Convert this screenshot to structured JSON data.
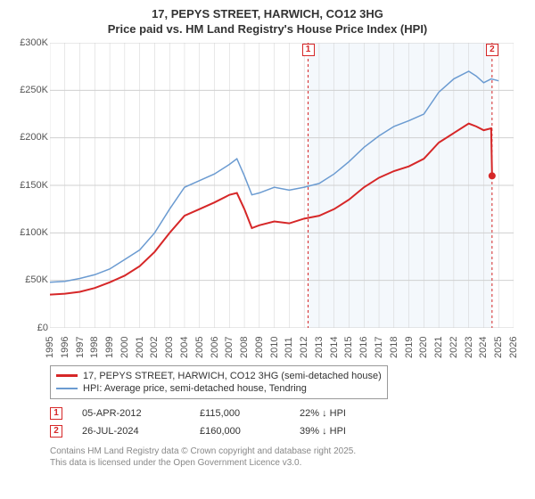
{
  "title_line1": "17, PEPYS STREET, HARWICH, CO12 3HG",
  "title_line2": "Price paid vs. HM Land Registry's House Price Index (HPI)",
  "chart": {
    "type": "line",
    "ylim": [
      0,
      300000
    ],
    "ytick_step": 50000,
    "yticks": [
      "£0",
      "£50K",
      "£100K",
      "£150K",
      "£200K",
      "£250K",
      "£300K"
    ],
    "xlim": [
      1995,
      2026
    ],
    "xticks": [
      "1995",
      "1996",
      "1997",
      "1998",
      "1999",
      "2000",
      "2001",
      "2002",
      "2003",
      "2004",
      "2005",
      "2006",
      "2007",
      "2008",
      "2009",
      "2010",
      "2011",
      "2012",
      "2013",
      "2014",
      "2015",
      "2016",
      "2017",
      "2018",
      "2019",
      "2020",
      "2021",
      "2022",
      "2023",
      "2024",
      "2025",
      "2026"
    ],
    "background_color": "#ffffff",
    "grid_color": "#d0d0d0",
    "series": [
      {
        "name": "property",
        "label": "17, PEPYS STREET, HARWICH, CO12 3HG (semi-detached house)",
        "color": "#d62728",
        "width": 2,
        "data": [
          [
            1995,
            35000
          ],
          [
            1996,
            36000
          ],
          [
            1997,
            38000
          ],
          [
            1998,
            42000
          ],
          [
            1999,
            48000
          ],
          [
            2000,
            55000
          ],
          [
            2001,
            65000
          ],
          [
            2002,
            80000
          ],
          [
            2003,
            100000
          ],
          [
            2004,
            118000
          ],
          [
            2005,
            125000
          ],
          [
            2006,
            132000
          ],
          [
            2007,
            140000
          ],
          [
            2007.5,
            142000
          ],
          [
            2008,
            125000
          ],
          [
            2008.5,
            105000
          ],
          [
            2009,
            108000
          ],
          [
            2010,
            112000
          ],
          [
            2011,
            110000
          ],
          [
            2012,
            115000
          ],
          [
            2013,
            118000
          ],
          [
            2014,
            125000
          ],
          [
            2015,
            135000
          ],
          [
            2016,
            148000
          ],
          [
            2017,
            158000
          ],
          [
            2018,
            165000
          ],
          [
            2019,
            170000
          ],
          [
            2020,
            178000
          ],
          [
            2021,
            195000
          ],
          [
            2022,
            205000
          ],
          [
            2023,
            215000
          ],
          [
            2023.5,
            212000
          ],
          [
            2024,
            208000
          ],
          [
            2024.5,
            210000
          ],
          [
            2024.56,
            160000
          ],
          [
            2024.6,
            162000
          ]
        ]
      },
      {
        "name": "hpi",
        "label": "HPI: Average price, semi-detached house, Tendring",
        "color": "#6b9bd1",
        "width": 1.5,
        "data": [
          [
            1995,
            48000
          ],
          [
            1996,
            49000
          ],
          [
            1997,
            52000
          ],
          [
            1998,
            56000
          ],
          [
            1999,
            62000
          ],
          [
            2000,
            72000
          ],
          [
            2001,
            82000
          ],
          [
            2002,
            100000
          ],
          [
            2003,
            125000
          ],
          [
            2004,
            148000
          ],
          [
            2005,
            155000
          ],
          [
            2006,
            162000
          ],
          [
            2007,
            172000
          ],
          [
            2007.5,
            178000
          ],
          [
            2008,
            160000
          ],
          [
            2008.5,
            140000
          ],
          [
            2009,
            142000
          ],
          [
            2010,
            148000
          ],
          [
            2011,
            145000
          ],
          [
            2012,
            148000
          ],
          [
            2013,
            152000
          ],
          [
            2014,
            162000
          ],
          [
            2015,
            175000
          ],
          [
            2016,
            190000
          ],
          [
            2017,
            202000
          ],
          [
            2018,
            212000
          ],
          [
            2019,
            218000
          ],
          [
            2020,
            225000
          ],
          [
            2021,
            248000
          ],
          [
            2022,
            262000
          ],
          [
            2023,
            270000
          ],
          [
            2023.5,
            265000
          ],
          [
            2024,
            258000
          ],
          [
            2024.5,
            262000
          ],
          [
            2025,
            260000
          ]
        ]
      }
    ],
    "markers": [
      {
        "n": "1",
        "x": 2012.26,
        "y_top": 300000,
        "color": "#d62728"
      },
      {
        "n": "2",
        "x": 2024.56,
        "y_top": 300000,
        "color": "#d62728"
      }
    ]
  },
  "legend": {
    "items": [
      {
        "color": "#d62728",
        "label": "17, PEPYS STREET, HARWICH, CO12 3HG (semi-detached house)"
      },
      {
        "color": "#6b9bd1",
        "label": "HPI: Average price, semi-detached house, Tendring"
      }
    ]
  },
  "data_points": [
    {
      "n": "1",
      "color": "#d62728",
      "date": "05-APR-2012",
      "price": "£115,000",
      "delta": "22% ↓ HPI"
    },
    {
      "n": "2",
      "color": "#d62728",
      "date": "26-JUL-2024",
      "price": "£160,000",
      "delta": "39% ↓ HPI"
    }
  ],
  "footer_line1": "Contains HM Land Registry data © Crown copyright and database right 2025.",
  "footer_line2": "This data is licensed under the Open Government Licence v3.0."
}
